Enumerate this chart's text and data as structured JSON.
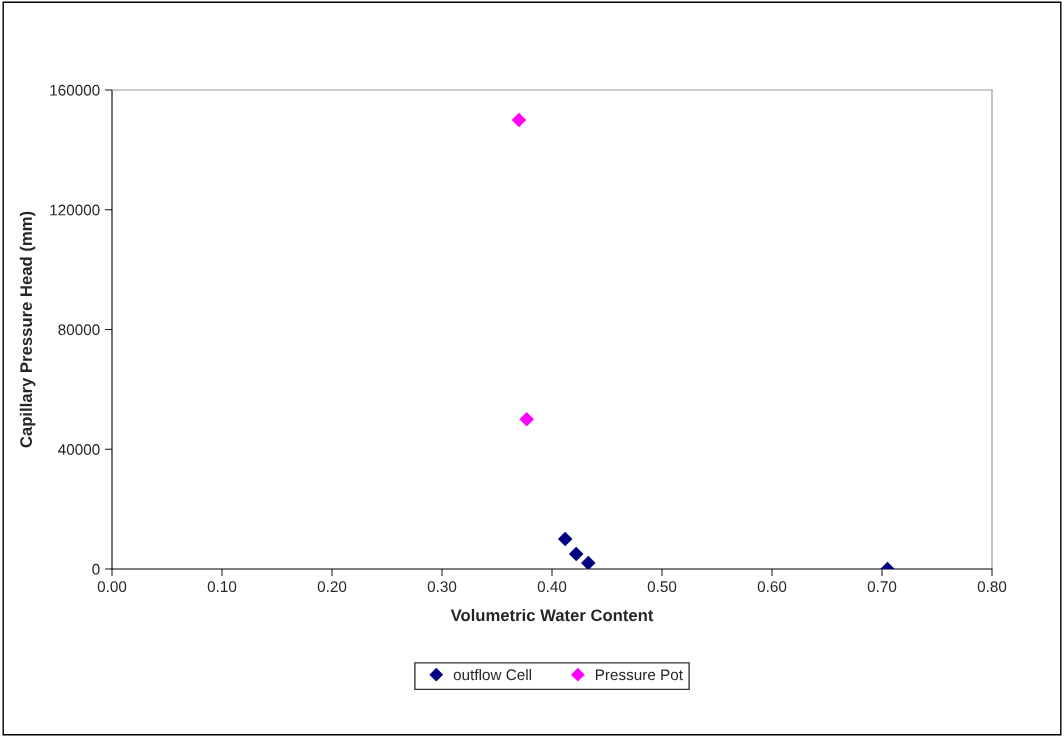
{
  "chart_data": {
    "type": "scatter",
    "xlabel": "Volumetric Water Content",
    "ylabel": "Capillary Pressure Head (mm)",
    "xlim": [
      0,
      0.8
    ],
    "xticks": [
      {
        "value": 0,
        "label": "0.00"
      },
      {
        "value": 0.1,
        "label": "0.10"
      },
      {
        "value": 0.2,
        "label": "0.20"
      },
      {
        "value": 0.3,
        "label": "0.30"
      },
      {
        "value": 0.4,
        "label": "0.40"
      },
      {
        "value": 0.5,
        "label": "0.50"
      },
      {
        "value": 0.6,
        "label": "0.60"
      },
      {
        "value": 0.7,
        "label": "0.70"
      },
      {
        "value": 0.8,
        "label": "0.80"
      }
    ],
    "ylim": [
      0,
      160000
    ],
    "yticks": [
      0,
      40000,
      80000,
      120000,
      160000
    ],
    "marker": "diamond",
    "grid": false,
    "legend": "bottom",
    "series": [
      {
        "name": "outflow Cell",
        "color": "#000080",
        "x": [
          0.412,
          0.422,
          0.433,
          0.705
        ],
        "values": [
          10000,
          5000,
          2000,
          0
        ]
      },
      {
        "name": "Pressure Pot",
        "color": "#ff00ff",
        "x": [
          0.37,
          0.377
        ],
        "values": [
          150000,
          50000
        ]
      }
    ]
  }
}
